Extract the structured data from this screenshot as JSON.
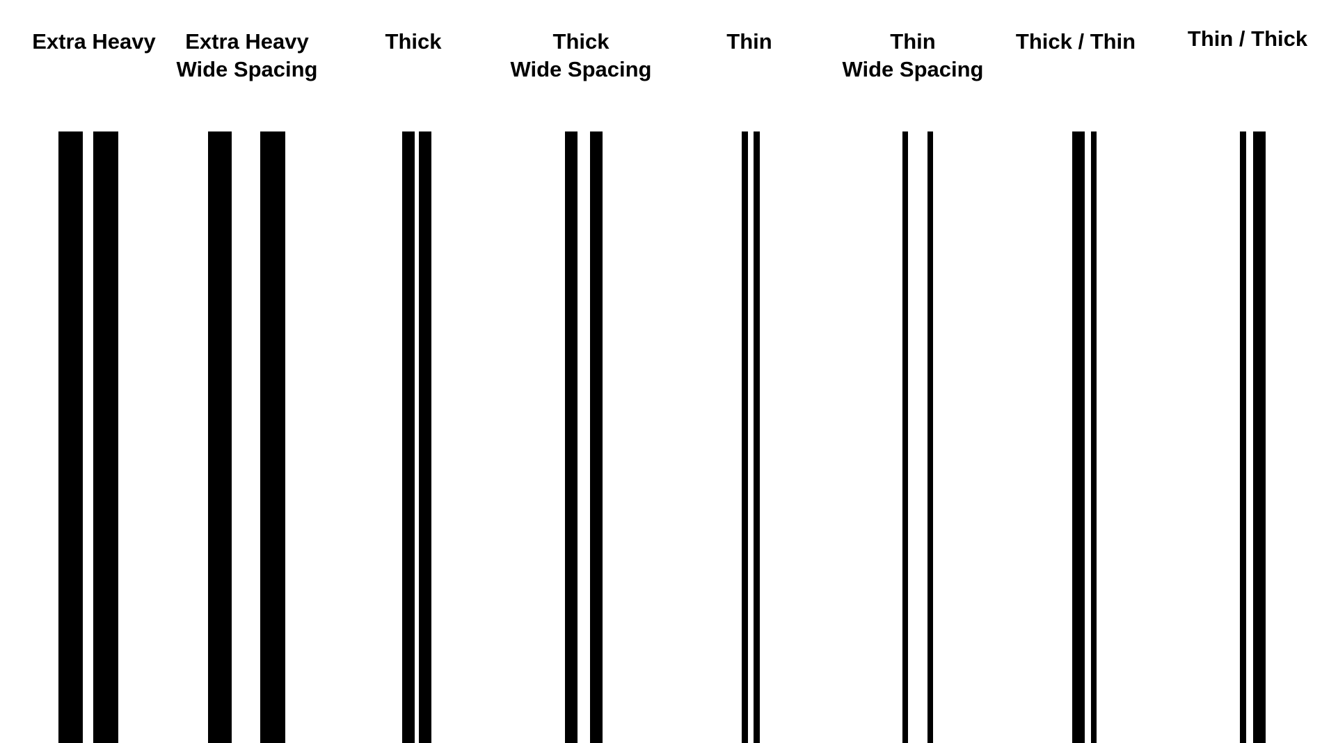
{
  "styles": [
    {
      "line1": "Extra Heavy",
      "line2": ""
    },
    {
      "line1": "Extra Heavy",
      "line2": "Wide Spacing"
    },
    {
      "line1": "Thick",
      "line2": ""
    },
    {
      "line1": "Thick",
      "line2": "Wide Spacing"
    },
    {
      "line1": "Thin",
      "line2": ""
    },
    {
      "line1": "Thin",
      "line2": "Wide Spacing"
    },
    {
      "line1": "Thick / Thin",
      "line2": ""
    },
    {
      "line1": "Thin / Thick",
      "line2": ""
    }
  ],
  "colors": {
    "line": "#000000",
    "background": "#ffffff"
  }
}
